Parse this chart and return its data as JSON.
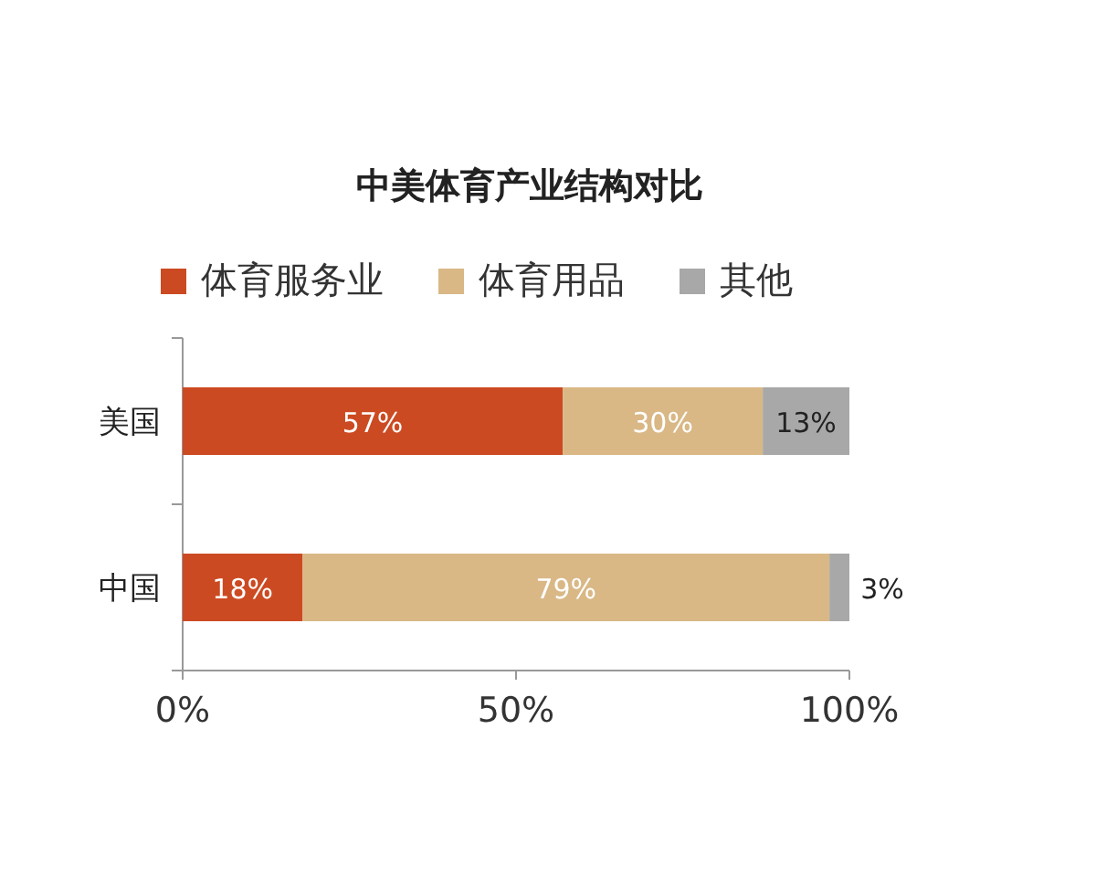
{
  "chart_data": {
    "type": "bar",
    "orientation": "horizontal",
    "stacked": true,
    "title": "中美体育产业结构对比",
    "categories": [
      "美国",
      "中国"
    ],
    "series": [
      {
        "name": "体育服务业",
        "color": "#cc4a22",
        "values": [
          57,
          18
        ],
        "value_labels": [
          "57%",
          "18%"
        ]
      },
      {
        "name": "体育用品",
        "color": "#d9b886",
        "values": [
          30,
          79
        ],
        "value_labels": [
          "30%",
          "79%"
        ]
      },
      {
        "name": "其他",
        "color": "#a8a8a8",
        "values": [
          13,
          3
        ],
        "value_labels": [
          "13%",
          "3%"
        ]
      }
    ],
    "xlim": [
      0,
      100
    ],
    "xticks": [
      {
        "value": 0,
        "label": "0%"
      },
      {
        "value": 50,
        "label": "50%"
      },
      {
        "value": 100,
        "label": "100%"
      }
    ],
    "legend": "top",
    "grid": false
  }
}
